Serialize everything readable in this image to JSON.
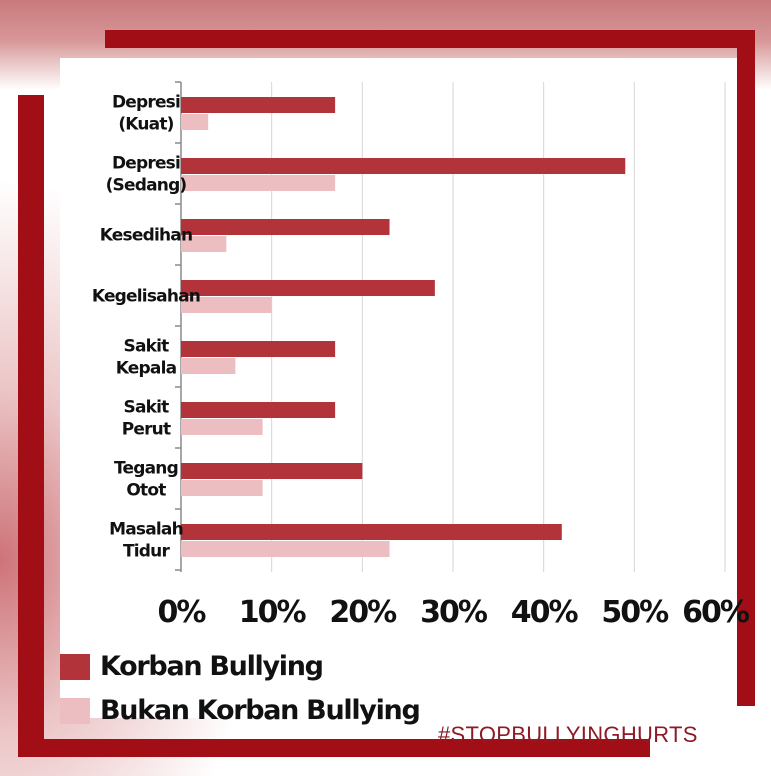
{
  "chart_data": {
    "type": "bar",
    "orientation": "horizontal",
    "categories": [
      [
        "Depresi",
        "(Kuat)"
      ],
      [
        "Depresi",
        "(Sedang)"
      ],
      [
        "Kesedihan"
      ],
      [
        "Kegelisahan"
      ],
      [
        "Sakit",
        "Kepala"
      ],
      [
        "Sakit",
        "Perut"
      ],
      [
        "Tegang",
        "Otot"
      ],
      [
        "Masalah",
        "Tidur"
      ]
    ],
    "series": [
      {
        "name": "Korban Bullying",
        "color": "#b3333b",
        "values": [
          17,
          49,
          23,
          28,
          17,
          17,
          20,
          42
        ]
      },
      {
        "name": "Bukan Korban Bullying",
        "color": "#ecbec1",
        "values": [
          3,
          17,
          5,
          10,
          6,
          9,
          9,
          23
        ]
      }
    ],
    "xlim": [
      0,
      60
    ],
    "xticks": [
      "0%",
      "10%",
      "20%",
      "30%",
      "40%",
      "50%",
      "60%"
    ],
    "grid": true,
    "legend_position": "bottom-left"
  },
  "legend": {
    "victim_label": "Korban Bullying",
    "non_victim_label": "Bukan Korban Bullying"
  },
  "hashtag": "#STOPBULLYINGHURTS",
  "colors": {
    "frame": "#a10e16",
    "victim": "#b3333b",
    "non_victim": "#ecbec1",
    "hashtag": "#8e1a25"
  }
}
